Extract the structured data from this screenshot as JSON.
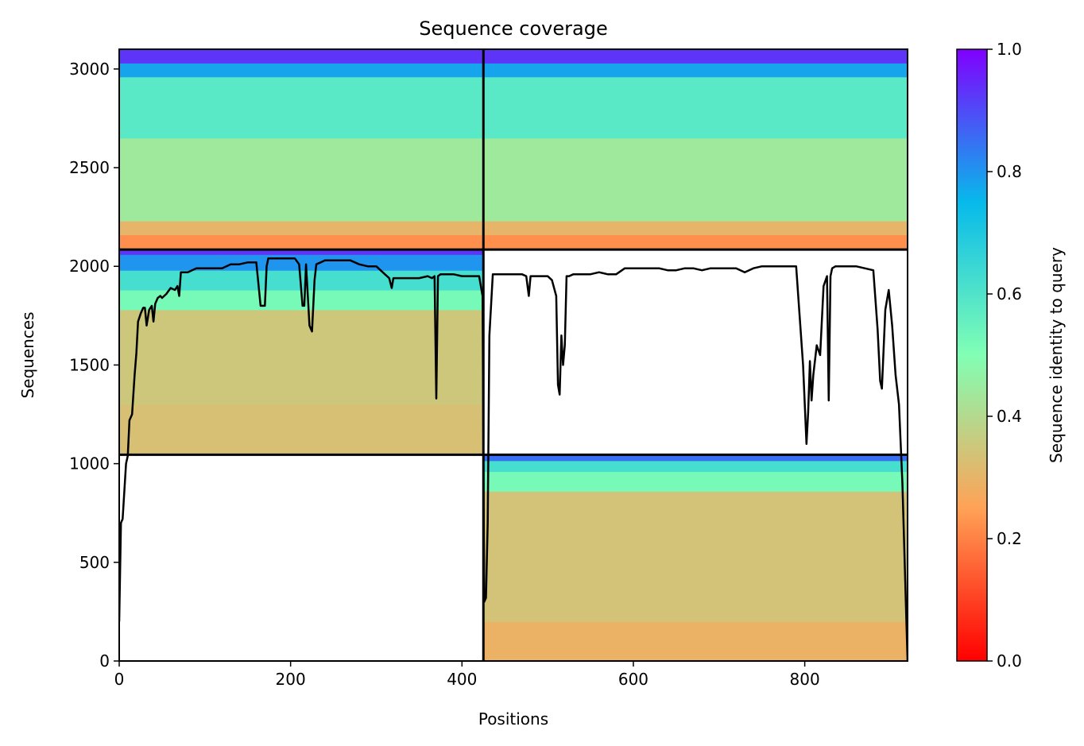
{
  "chart_data": {
    "type": "heatmap",
    "title": "Sequence coverage",
    "xlabel": "Positions",
    "ylabel": "Sequences",
    "xlim": [
      0,
      920
    ],
    "ylim": [
      0,
      3100
    ],
    "xticks": [
      0,
      200,
      400,
      600,
      800
    ],
    "yticks": [
      0,
      500,
      1000,
      1500,
      2000,
      2500,
      3000
    ],
    "colorbar": {
      "label": "Sequence identity to query",
      "range": [
        0,
        1
      ],
      "ticks": [
        "0.0",
        "0.2",
        "0.4",
        "0.6",
        "0.8",
        "1.0"
      ],
      "colormap": "rainbow_r",
      "colors": [
        "#ff0000",
        "#ffa256",
        "#81ffb4",
        "#07baeb",
        "#8000ff"
      ]
    },
    "block_boundaries": {
      "x": [
        0,
        425,
        920
      ],
      "y": [
        0,
        1045,
        2085,
        3100
      ]
    },
    "blocks": [
      {
        "x": [
          0,
          425
        ],
        "y": [
          2085,
          3100
        ],
        "bands": [
          {
            "y": [
              2085,
              2160
            ],
            "identity": 0.22
          },
          {
            "y": [
              2160,
              2230
            ],
            "identity": 0.3
          },
          {
            "y": [
              2230,
              2650
            ],
            "identity": 0.44
          },
          {
            "y": [
              2650,
              2960
            ],
            "identity": 0.58
          },
          {
            "y": [
              2960,
              3030
            ],
            "identity": 0.78
          },
          {
            "y": [
              3030,
              3100
            ],
            "identity": 0.93
          }
        ]
      },
      {
        "x": [
          425,
          920
        ],
        "y": [
          2085,
          3100
        ],
        "bands": [
          {
            "y": [
              2085,
              2160
            ],
            "identity": 0.22
          },
          {
            "y": [
              2160,
              2230
            ],
            "identity": 0.3
          },
          {
            "y": [
              2230,
              2650
            ],
            "identity": 0.44
          },
          {
            "y": [
              2650,
              2960
            ],
            "identity": 0.58
          },
          {
            "y": [
              2960,
              3030
            ],
            "identity": 0.78
          },
          {
            "y": [
              3030,
              3100
            ],
            "identity": 0.93
          }
        ]
      },
      {
        "x": [
          0,
          425
        ],
        "y": [
          1045,
          2085
        ],
        "bands": [
          {
            "y": [
              1045,
              1300
            ],
            "identity": 0.33
          },
          {
            "y": [
              1300,
              1780
            ],
            "identity": 0.35
          },
          {
            "y": [
              1780,
              1880
            ],
            "identity": 0.52
          },
          {
            "y": [
              1880,
              1980
            ],
            "identity": 0.62
          },
          {
            "y": [
              1980,
              2060
            ],
            "identity": 0.8
          },
          {
            "y": [
              2060,
              2085
            ],
            "identity": 0.93
          }
        ]
      },
      {
        "x": [
          425,
          920
        ],
        "y": [
          0,
          1045
        ],
        "bands": [
          {
            "y": [
              0,
              200
            ],
            "identity": 0.29
          },
          {
            "y": [
              200,
              860
            ],
            "identity": 0.34
          },
          {
            "y": [
              860,
              960
            ],
            "identity": 0.52
          },
          {
            "y": [
              960,
              1015
            ],
            "identity": 0.62
          },
          {
            "y": [
              1015,
              1045
            ],
            "identity": 0.85
          }
        ]
      }
    ],
    "coverage_line": {
      "x": [
        0,
        2,
        4,
        8,
        10,
        12,
        15,
        18,
        20,
        22,
        25,
        28,
        30,
        32,
        35,
        38,
        40,
        42,
        45,
        48,
        50,
        55,
        60,
        65,
        68,
        70,
        72,
        75,
        78,
        80,
        90,
        100,
        110,
        120,
        130,
        140,
        150,
        160,
        165,
        170,
        172,
        174,
        178,
        185,
        190,
        200,
        205,
        210,
        214,
        216,
        218,
        222,
        225,
        228,
        230,
        235,
        240,
        250,
        260,
        270,
        280,
        290,
        300,
        310,
        315,
        318,
        320,
        325,
        330,
        340,
        350,
        360,
        365,
        368,
        370,
        372,
        375,
        380,
        390,
        400,
        410,
        420,
        424,
        426,
        428,
        430,
        432,
        436,
        440,
        450,
        460,
        470,
        475,
        478,
        480,
        490,
        500,
        505,
        510,
        512,
        514,
        516,
        518,
        520,
        522,
        525,
        530,
        540,
        550,
        560,
        570,
        580,
        590,
        600,
        610,
        620,
        630,
        640,
        650,
        660,
        670,
        680,
        690,
        700,
        710,
        720,
        730,
        740,
        750,
        760,
        770,
        780,
        790,
        798,
        802,
        804,
        806,
        808,
        810,
        814,
        818,
        822,
        826,
        828,
        830,
        832,
        836,
        840,
        850,
        860,
        870,
        880,
        885,
        888,
        890,
        894,
        898,
        902,
        906,
        910,
        914,
        918,
        920
      ],
      "y": [
        200,
        700,
        720,
        1000,
        1040,
        1220,
        1250,
        1450,
        1560,
        1720,
        1760,
        1790,
        1790,
        1700,
        1780,
        1800,
        1720,
        1810,
        1840,
        1850,
        1840,
        1860,
        1890,
        1880,
        1900,
        1850,
        1970,
        1970,
        1970,
        1970,
        1990,
        1990,
        1990,
        1990,
        2010,
        2010,
        2020,
        2020,
        1800,
        1800,
        2000,
        2040,
        2040,
        2040,
        2040,
        2040,
        2040,
        2010,
        1800,
        1800,
        2010,
        1700,
        1670,
        1930,
        2010,
        2020,
        2030,
        2030,
        2030,
        2030,
        2010,
        2000,
        2000,
        1960,
        1940,
        1890,
        1940,
        1940,
        1940,
        1940,
        1940,
        1950,
        1940,
        1950,
        1330,
        1950,
        1960,
        1960,
        1960,
        1950,
        1950,
        1950,
        1850,
        300,
        320,
        700,
        1650,
        1960,
        1960,
        1960,
        1960,
        1960,
        1950,
        1850,
        1950,
        1950,
        1950,
        1930,
        1850,
        1400,
        1350,
        1650,
        1500,
        1600,
        1950,
        1950,
        1960,
        1960,
        1960,
        1970,
        1960,
        1960,
        1990,
        1990,
        1990,
        1990,
        1990,
        1980,
        1980,
        1990,
        1990,
        1980,
        1990,
        1990,
        1990,
        1990,
        1970,
        1990,
        2000,
        2000,
        2000,
        2000,
        2000,
        1500,
        1100,
        1260,
        1520,
        1320,
        1450,
        1600,
        1550,
        1900,
        1950,
        1320,
        1950,
        1990,
        2000,
        2000,
        2000,
        2000,
        1990,
        1980,
        1680,
        1420,
        1380,
        1780,
        1880,
        1700,
        1450,
        1300,
        900,
        300,
        0
      ]
    }
  }
}
